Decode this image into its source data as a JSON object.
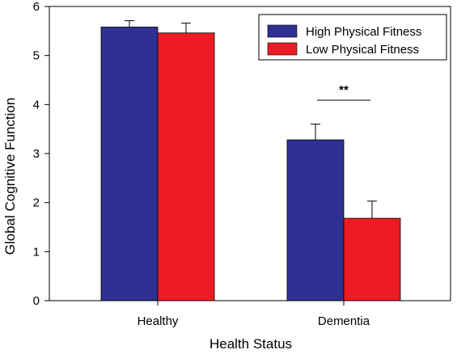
{
  "chart_data": {
    "type": "bar",
    "categories": [
      "Healthy",
      "Dementia"
    ],
    "series": [
      {
        "name": "High Physical Fitness",
        "values": [
          5.58,
          3.28
        ],
        "errors": [
          0.13,
          0.32
        ],
        "color": "#2e3192"
      },
      {
        "name": "Low Physical Fitness",
        "values": [
          5.46,
          1.68
        ],
        "errors": [
          0.2,
          0.35
        ],
        "color": "#ed1c24"
      }
    ],
    "xlabel": "Health Status",
    "ylabel": "Global Cognitive Function",
    "ylim": [
      0,
      6
    ],
    "yticks": [
      0,
      1,
      2,
      3,
      4,
      5,
      6
    ],
    "ytick_labels": [
      "0",
      "1",
      "2",
      "3",
      "4",
      "5",
      "6"
    ],
    "grid": false,
    "legend_position": "top-right",
    "annotation": {
      "text": "**",
      "category": "Dementia"
    }
  }
}
